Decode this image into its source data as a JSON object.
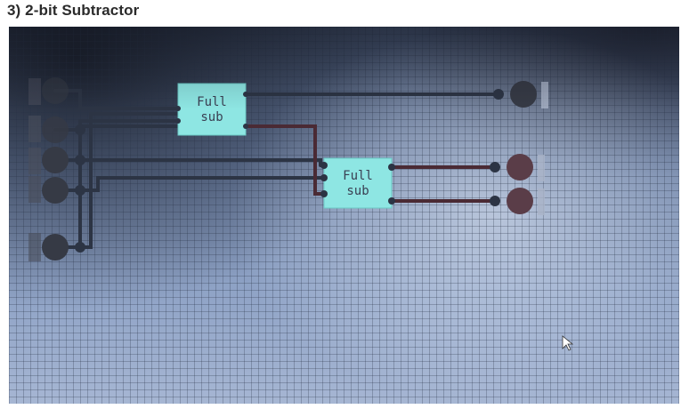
{
  "heading": "3) 2-bit Subtractor",
  "gates": [
    {
      "line1": "Full",
      "line2": "sub"
    },
    {
      "line1": "Full",
      "line2": "sub"
    }
  ],
  "colors": {
    "gate_fill": "#8ee6e3",
    "wire_off": "#2c3444",
    "wire_on": "#4a2a34",
    "node_off": "#363a45",
    "node_on": "#5a3d48"
  }
}
